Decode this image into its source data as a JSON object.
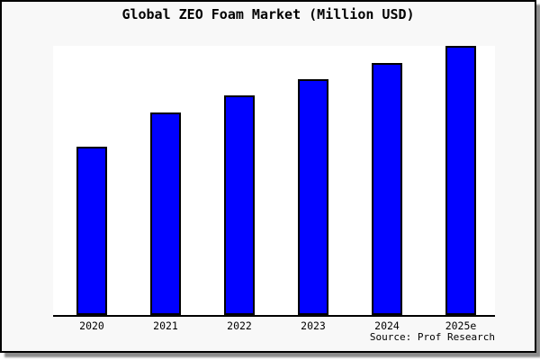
{
  "frame": {
    "background": "#f8f8f8",
    "border_color": "#000000",
    "shadow_color": "#8c8c8c"
  },
  "chart_data": {
    "type": "bar",
    "title": "Global ZEO Foam Market (Million USD)",
    "xlabel": "",
    "ylabel": "",
    "categories": [
      "2020",
      "2021",
      "2022",
      "2023",
      "2024",
      "2025e"
    ],
    "values": [
      62.7,
      75.2,
      81.7,
      87.7,
      93.7,
      100
    ],
    "ylim": [
      0,
      100
    ],
    "value_axis_note": "y-axis has no ticks, labels or gridlines; values are relative estimates with tallest bar = 100",
    "bar_color": "#0000ff",
    "bar_edge_color": "#000000",
    "grid": false,
    "legend_position": "none",
    "source_note": "Source: Prof Research"
  }
}
